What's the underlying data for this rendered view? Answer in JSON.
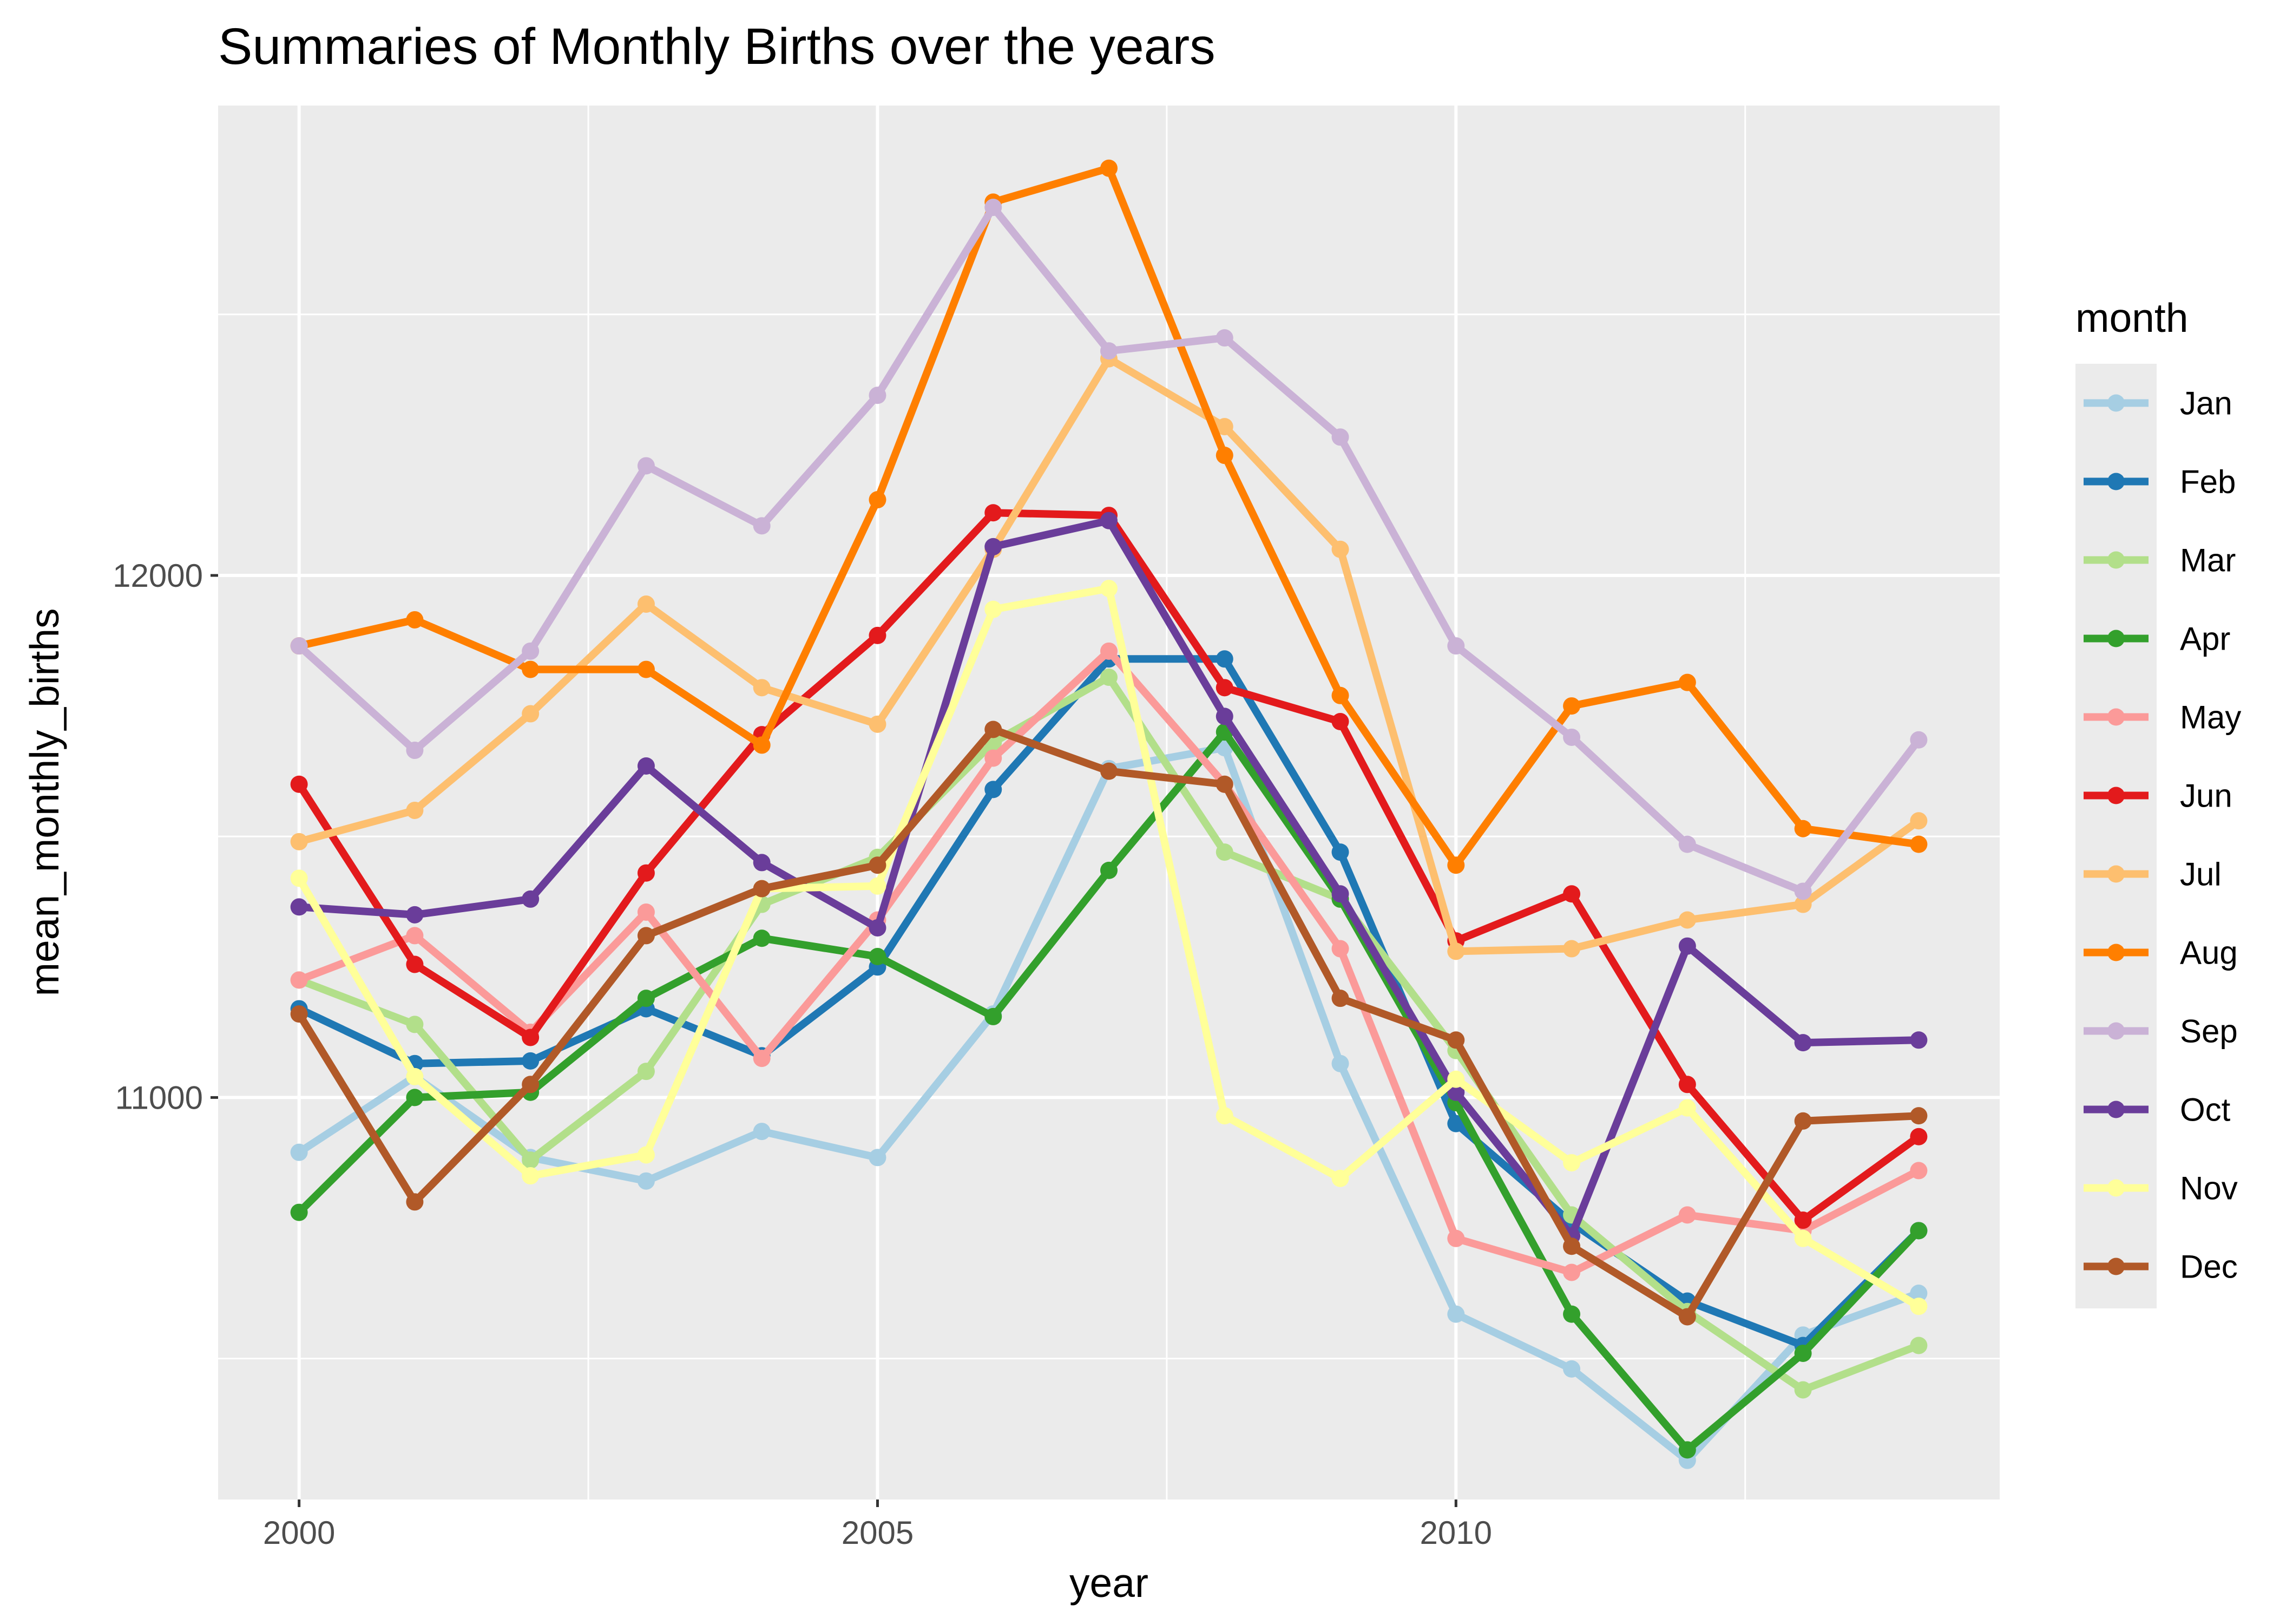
{
  "chart_data": {
    "type": "line",
    "title": "Summaries of Monthly Births over the years",
    "xlabel": "year",
    "ylabel": "mean_monthly_births",
    "x": [
      2000,
      2001,
      2002,
      2003,
      2004,
      2005,
      2006,
      2007,
      2008,
      2009,
      2010,
      2011,
      2012,
      2013,
      2014
    ],
    "xlim": [
      1999.3,
      2014.7
    ],
    "ylim": [
      10230,
      12900
    ],
    "x_major_ticks": [
      2000,
      2005,
      2010
    ],
    "x_tick_labels": [
      "2000",
      "2005",
      "2010"
    ],
    "x_minor_ticks": [
      2002.5,
      2007.5,
      2012.5
    ],
    "y_major_ticks": [
      11000,
      12000
    ],
    "y_tick_labels": [
      "11000",
      "12000"
    ],
    "y_minor_ticks": [
      10500,
      11500,
      12500
    ],
    "grid": true,
    "legend": {
      "title": "month",
      "position": "right"
    },
    "series": [
      {
        "name": "Jan",
        "color": "#A6CEE3",
        "values": [
          10895,
          11040,
          10885,
          10840,
          10935,
          10885,
          11160,
          11630,
          11670,
          11065,
          10585,
          10480,
          10305,
          10545,
          10625
        ]
      },
      {
        "name": "Feb",
        "color": "#1F78B4",
        "values": [
          11170,
          11065,
          11070,
          11170,
          11080,
          11250,
          11590,
          11840,
          11840,
          11470,
          10950,
          10760,
          10610,
          10525,
          10745
        ]
      },
      {
        "name": "Mar",
        "color": "#B2DF8A",
        "values": [
          11225,
          11140,
          10880,
          11050,
          11370,
          11460,
          11680,
          11805,
          11470,
          11380,
          11090,
          10775,
          10590,
          10440,
          10525
        ]
      },
      {
        "name": "Apr",
        "color": "#33A02C",
        "values": [
          10780,
          11000,
          11010,
          11190,
          11305,
          11270,
          11155,
          11435,
          11700,
          11380,
          10990,
          10585,
          10325,
          10510,
          10745
        ]
      },
      {
        "name": "May",
        "color": "#FB9A99",
        "values": [
          11225,
          11310,
          11125,
          11355,
          11075,
          11340,
          11650,
          11855,
          11600,
          11285,
          10730,
          10665,
          10775,
          10745,
          10860
        ]
      },
      {
        "name": "Jun",
        "color": "#E31A1C",
        "values": [
          11600,
          11255,
          11115,
          11430,
          11695,
          11885,
          12120,
          12115,
          11785,
          11720,
          11300,
          11390,
          11025,
          10765,
          10925
        ]
      },
      {
        "name": "Jul",
        "color": "#FDBF6F",
        "values": [
          11490,
          11550,
          11735,
          11945,
          11785,
          11715,
          12050,
          12415,
          12285,
          12050,
          11280,
          11285,
          11340,
          11370,
          11530
        ]
      },
      {
        "name": "Aug",
        "color": "#FF7F00",
        "values": [
          11865,
          11915,
          11820,
          11820,
          11675,
          12145,
          12715,
          12780,
          12230,
          11770,
          11445,
          11750,
          11795,
          11515,
          11485
        ]
      },
      {
        "name": "Sep",
        "color": "#CAB2D6",
        "values": [
          11865,
          11665,
          11855,
          12210,
          12095,
          12345,
          12705,
          12430,
          12455,
          12265,
          11865,
          11690,
          11485,
          11395,
          11685
        ]
      },
      {
        "name": "Oct",
        "color": "#6A3D9A",
        "values": [
          11365,
          11350,
          11380,
          11635,
          11450,
          11325,
          12055,
          12105,
          11730,
          11390,
          11010,
          10735,
          11290,
          11105,
          11110
        ]
      },
      {
        "name": "Nov",
        "color": "#FFFF99",
        "values": [
          11420,
          11040,
          10850,
          10890,
          11400,
          11405,
          11935,
          11975,
          10965,
          10845,
          11035,
          10875,
          10980,
          10730,
          10600
        ]
      },
      {
        "name": "Dec",
        "color": "#B15928",
        "values": [
          11160,
          10800,
          11025,
          11310,
          11400,
          11445,
          11705,
          11625,
          11600,
          11190,
          11110,
          10715,
          10580,
          10955,
          10965
        ]
      }
    ]
  }
}
